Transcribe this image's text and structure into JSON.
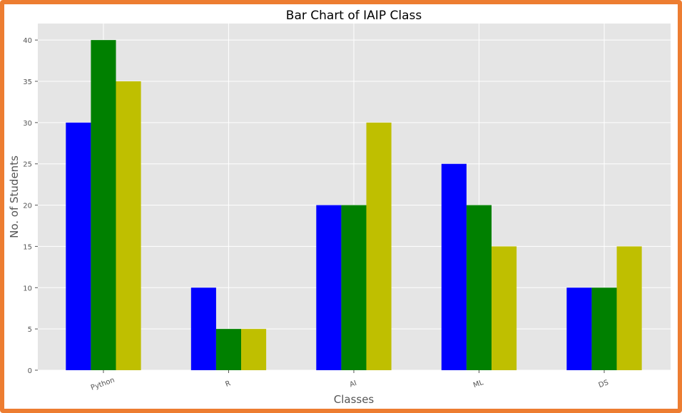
{
  "colors": {
    "border": "#ED7D31",
    "plot_bg": "#E5E5E5",
    "grid": "#FFFFFF"
  },
  "chart_data": {
    "type": "bar",
    "title": "Bar Chart of IAIP Class",
    "xlabel": "Classes",
    "ylabel": "No. of Students",
    "categories": [
      "Python",
      "R",
      "AI",
      "ML",
      "DS"
    ],
    "series": [
      {
        "color": "#0000FF",
        "values": [
          30,
          10,
          20,
          25,
          10
        ]
      },
      {
        "color": "#008000",
        "values": [
          40,
          5,
          20,
          20,
          10
        ]
      },
      {
        "color": "#BFBF00",
        "values": [
          35,
          5,
          30,
          15,
          15
        ]
      }
    ],
    "ylim": [
      0,
      42
    ],
    "yticks": [
      0,
      5,
      10,
      15,
      20,
      25,
      30,
      35,
      40
    ],
    "grid": true,
    "legend": "none",
    "xtick_rotation": 20
  }
}
